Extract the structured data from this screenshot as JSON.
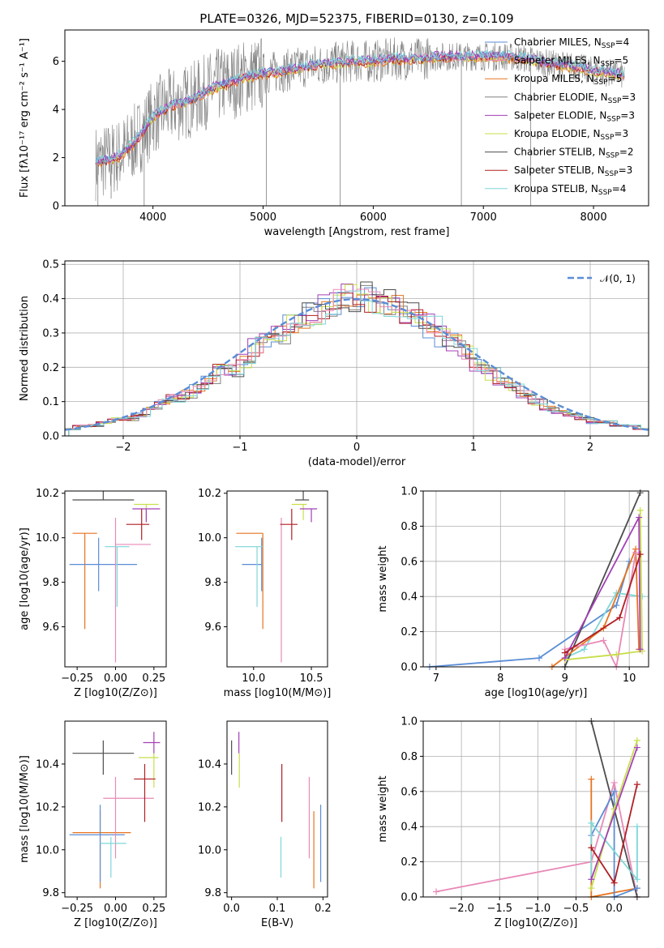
{
  "title": "PLATE=0326, MJD=52375, FIBERID=0130, z=0.109",
  "colors": {
    "blue": "#5a8dd6",
    "orange": "#e8731f",
    "gray": "#808080",
    "purple": "#a43fb8",
    "lime": "#c8de4a",
    "darkgray": "#4d4d4d",
    "red": "#b01f24",
    "cyan": "#7fd6d9",
    "pink": "#e889b8",
    "dashed": "#5a8dd6"
  },
  "spectrum": {
    "xlabel": "wavelength [Angstrom, rest frame]",
    "ylabel": "Flux [fλ10⁻¹⁷ erg cm⁻² s⁻¹ A⁻¹]",
    "xlim": [
      3200,
      8500
    ],
    "ylim": [
      0,
      7.3
    ],
    "xticks": [
      "4000",
      "5000",
      "6000",
      "7000",
      "8000"
    ],
    "yticks": [
      "0",
      "2",
      "4",
      "6"
    ],
    "legend": [
      {
        "label": "Chabrier MILES, N_SSP=4",
        "color": "blue"
      },
      {
        "label": "Salpeter MILES, N_SSP=5",
        "color": "pink"
      },
      {
        "label": "Kroupa MILES, N_SSP=5",
        "color": "orange"
      },
      {
        "label": "Chabrier ELODIE, N_SSP=3",
        "color": "gray"
      },
      {
        "label": "Salpeter ELODIE, N_SSP=3",
        "color": "purple"
      },
      {
        "label": "Kroupa ELODIE, N_SSP=3",
        "color": "lime"
      },
      {
        "label": "Chabrier STELIB, N_SSP=2",
        "color": "darkgray"
      },
      {
        "label": "Salpeter STELIB, N_SSP=3",
        "color": "red"
      },
      {
        "label": "Kroupa STELIB, N_SSP=4",
        "color": "cyan"
      }
    ]
  },
  "histogram": {
    "xlabel": "(data-model)/error",
    "ylabel": "Normed distribution",
    "xlim": [
      -2.5,
      2.5
    ],
    "ylim": [
      0,
      0.51
    ],
    "xticks": [
      "−2",
      "−1",
      "0",
      "1",
      "2"
    ],
    "yticks": [
      "0.0",
      "0.1",
      "0.2",
      "0.3",
      "0.4",
      "0.5"
    ],
    "legend": "𝒩(0, 1)"
  },
  "panels": {
    "age_vs_Z": {
      "xlabel": "Z [log10(Z/Z⊙)]",
      "ylabel": "age  [log10(age/yr)]",
      "xticks": [
        "−0.25",
        "0.00",
        "0.25"
      ],
      "yticks": [
        "9.6",
        "9.8",
        "10.0",
        "10.2"
      ]
    },
    "age_vs_mass": {
      "xlabel": "mass [log10(M/M⊙)]",
      "xticks": [
        "10.0",
        "10.5"
      ],
      "yticks": [
        "9.6",
        "9.8",
        "10.0",
        "10.2"
      ]
    },
    "mw_vs_age": {
      "xlabel": "age  [log10(age/yr)]",
      "ylabel": "mass weight",
      "xticks": [
        "7",
        "8",
        "9",
        "10"
      ],
      "yticks": [
        "0.0",
        "0.2",
        "0.4",
        "0.6",
        "0.8",
        "1.0"
      ]
    },
    "mass_vs_Z": {
      "xlabel": "Z [log10(Z/Z⊙)]",
      "ylabel": "mass [log10(M/M⊙)]",
      "xticks": [
        "−0.25",
        "0.00",
        "0.25"
      ],
      "yticks": [
        "9.8",
        "10.0",
        "10.2",
        "10.4"
      ]
    },
    "mass_vs_ebv": {
      "xlabel": "E(B-V)",
      "xticks": [
        "0.0",
        "0.1",
        "0.2"
      ],
      "yticks": [
        "9.8",
        "10.0",
        "10.2",
        "10.4"
      ]
    },
    "mw_vs_Z": {
      "xlabel": "Z [log10(Z/Z⊙)]",
      "ylabel": "mass weight",
      "xticks": [
        "−2.0",
        "−1.5",
        "−1.0",
        "−0.5",
        "0.0"
      ],
      "yticks": [
        "0.0",
        "0.2",
        "0.4",
        "0.6",
        "0.8",
        "1.0"
      ]
    }
  },
  "chart_data": [
    {
      "type": "line",
      "title": "PLATE=0326, MJD=52375, FIBERID=0130, z=0.109",
      "xlabel": "wavelength [Angstrom, rest frame]",
      "ylabel": "Flux [fλ10⁻¹⁷ erg cm⁻² s⁻¹ A⁻¹]",
      "xlim": [
        3200,
        8500
      ],
      "ylim": [
        0,
        7.3
      ],
      "x": [
        3480,
        3600,
        3700,
        3800,
        3900,
        4000,
        4100,
        4200,
        4300,
        4400,
        4500,
        4600,
        4700,
        4800,
        4900,
        5000,
        5200,
        5400,
        5600,
        5800,
        6000,
        6200,
        6400,
        6600,
        6800,
        7000,
        7200,
        7400,
        7600,
        7800,
        8000,
        8200,
        8280
      ],
      "series": [
        {
          "name": "Kroupa STELIB, N_SSP=4",
          "values": [
            1.8,
            1.9,
            2.1,
            2.5,
            3.0,
            3.7,
            4.0,
            4.2,
            4.3,
            4.5,
            4.8,
            5.0,
            5.1,
            5.3,
            5.4,
            5.5,
            5.6,
            5.8,
            5.9,
            6.0,
            6.0,
            6.1,
            6.1,
            6.2,
            6.2,
            6.2,
            6.2,
            6.1,
            5.9,
            5.8,
            5.6,
            5.5,
            5.4
          ]
        }
      ]
    },
    {
      "type": "bar",
      "xlabel": "(data-model)/error",
      "ylabel": "Normed distribution",
      "xlim": [
        -2.5,
        2.5
      ],
      "ylim": [
        0,
        0.51
      ],
      "bin_left_edges": [
        -2.5,
        -2.4,
        -2.3,
        -2.2,
        -2.1,
        -2.0,
        -1.9,
        -1.8,
        -1.7,
        -1.6,
        -1.5,
        -1.4,
        -1.3,
        -1.2,
        -1.1,
        -1.0,
        -0.9,
        -0.8,
        -0.7,
        -0.6,
        -0.5,
        -0.4,
        -0.3,
        -0.2,
        -0.1,
        0.0,
        0.1,
        0.2,
        0.3,
        0.4,
        0.5,
        0.6,
        0.7,
        0.8,
        0.9,
        1.0,
        1.1,
        1.2,
        1.3,
        1.4,
        1.5,
        1.6,
        1.7,
        1.8,
        1.9,
        2.0,
        2.1,
        2.2,
        2.3,
        2.4
      ],
      "values": [
        0.02,
        0.03,
        0.03,
        0.04,
        0.05,
        0.05,
        0.06,
        0.08,
        0.1,
        0.11,
        0.12,
        0.14,
        0.16,
        0.2,
        0.19,
        0.22,
        0.26,
        0.27,
        0.3,
        0.33,
        0.35,
        0.36,
        0.38,
        0.39,
        0.4,
        0.41,
        0.4,
        0.39,
        0.37,
        0.36,
        0.34,
        0.32,
        0.29,
        0.27,
        0.24,
        0.21,
        0.18,
        0.16,
        0.14,
        0.12,
        0.1,
        0.08,
        0.07,
        0.06,
        0.05,
        0.04,
        0.04,
        0.03,
        0.03,
        0.02
      ],
      "gaussian": {
        "name": "𝒩(0, 1)",
        "mu": 0,
        "sigma": 1
      }
    },
    {
      "type": "scatter",
      "xlabel": "Z [log10(Z/Z⊙)]",
      "ylabel": "age  [log10(age/yr)]",
      "xlim": [
        -0.33,
        0.33
      ],
      "ylim": [
        9.42,
        10.21
      ],
      "points": [
        {
          "color": "darkgray",
          "x": -0.08,
          "xerr": [
            0.2,
            0.2
          ],
          "y": 10.17,
          "yerr": [
            0,
            0
          ]
        },
        {
          "color": "orange",
          "x": -0.2,
          "xerr": [
            0.08,
            0.08
          ],
          "y": 10.02,
          "yerr": [
            0.43,
            0
          ]
        },
        {
          "color": "blue",
          "x": -0.11,
          "xerr": [
            0.19,
            0.25
          ],
          "y": 9.88,
          "yerr": [
            0.12,
            0.12
          ]
        },
        {
          "color": "pink",
          "x": 0.0,
          "xerr": [
            0,
            0.23
          ],
          "y": 9.97,
          "yerr": [
            0.53,
            0.12
          ]
        },
        {
          "color": "cyan",
          "x": 0.01,
          "xerr": [
            0.08,
            0.08
          ],
          "y": 9.96,
          "yerr": [
            0.27,
            0
          ]
        },
        {
          "color": "lime",
          "x": 0.2,
          "xerr": [
            0.08,
            0.08
          ],
          "y": 10.15,
          "yerr": [
            0.07,
            0
          ]
        },
        {
          "color": "purple",
          "x": 0.2,
          "xerr": [
            0.09,
            0.09
          ],
          "y": 10.13,
          "yerr": [
            0.06,
            0
          ]
        },
        {
          "color": "red",
          "x": 0.17,
          "xerr": [
            0.1,
            0.05
          ],
          "y": 10.06,
          "yerr": [
            0.07,
            0.07
          ]
        }
      ]
    },
    {
      "type": "scatter",
      "xlabel": "mass [log10(M/M⊙)]",
      "xlim": [
        9.77,
        10.64
      ],
      "ylim": [
        9.42,
        10.21
      ],
      "points": [
        {
          "color": "darkgray",
          "x": 10.43,
          "xerr": [
            0.07,
            0.05
          ],
          "y": 10.17,
          "yerr": [
            0,
            0
          ]
        },
        {
          "color": "orange",
          "x": 10.08,
          "xerr": [
            0.23,
            0
          ],
          "y": 10.02,
          "yerr": [
            0.43,
            0
          ]
        },
        {
          "color": "blue",
          "x": 10.07,
          "xerr": [
            0.17,
            0
          ],
          "y": 9.88,
          "yerr": [
            0.12,
            0.12
          ]
        },
        {
          "color": "pink",
          "x": 10.24,
          "xerr": [
            0,
            0
          ],
          "y": 9.97,
          "yerr": [
            0.53,
            0.12
          ]
        },
        {
          "color": "cyan",
          "x": 10.03,
          "xerr": [
            0.19,
            0.05
          ],
          "y": 9.96,
          "yerr": [
            0.27,
            0
          ]
        },
        {
          "color": "lime",
          "x": 10.43,
          "xerr": [
            0.1,
            0.03
          ],
          "y": 10.15,
          "yerr": [
            0.07,
            0
          ]
        },
        {
          "color": "purple",
          "x": 10.5,
          "xerr": [
            0.1,
            0.05
          ],
          "y": 10.13,
          "yerr": [
            0.06,
            0
          ]
        },
        {
          "color": "red",
          "x": 10.33,
          "xerr": [
            0.1,
            0.05
          ],
          "y": 10.06,
          "yerr": [
            0.07,
            0.07
          ]
        }
      ]
    },
    {
      "type": "line",
      "xlabel": "age  [log10(age/yr)]",
      "ylabel": "mass weight",
      "xlim": [
        6.8,
        10.3
      ],
      "ylim": [
        0,
        1
      ],
      "series": [
        {
          "color": "blue",
          "x": [
            6.9,
            8.6,
            9.8,
            10.0
          ],
          "y": [
            0.0,
            0.05,
            0.35,
            0.6
          ]
        },
        {
          "color": "cyan",
          "x": [
            9.0,
            9.3,
            9.8,
            10.2
          ],
          "y": [
            0.05,
            0.1,
            0.42,
            0.4
          ]
        },
        {
          "color": "darkgray",
          "x": [
            9.0,
            10.17
          ],
          "y": [
            0.0,
            0.99
          ]
        },
        {
          "color": "orange",
          "x": [
            8.8,
            9.6,
            10.1,
            10.15
          ],
          "y": [
            0.0,
            0.22,
            0.67,
            0.1
          ]
        },
        {
          "color": "pink",
          "x": [
            9.0,
            9.6,
            9.8,
            10.1
          ],
          "y": [
            0.1,
            0.15,
            0.0,
            0.65
          ]
        },
        {
          "color": "lime",
          "x": [
            9.0,
            9.8,
            10.2,
            10.17
          ],
          "y": [
            0.04,
            0.07,
            0.09,
            0.89
          ]
        },
        {
          "color": "purple",
          "x": [
            9.0,
            10.15,
            10.17
          ],
          "y": [
            0.05,
            0.85,
            0.1
          ]
        },
        {
          "color": "red",
          "x": [
            9.0,
            9.85,
            10.17
          ],
          "y": [
            0.08,
            0.28,
            0.64
          ]
        }
      ]
    },
    {
      "type": "scatter",
      "xlabel": "Z [log10(Z/Z⊙)]",
      "ylabel": "mass [log10(M/M⊙)]",
      "xlim": [
        -0.33,
        0.33
      ],
      "ylim": [
        9.78,
        10.6
      ],
      "points": [
        {
          "color": "darkgray",
          "x": -0.08,
          "xerr": [
            0.2,
            0.2
          ],
          "y": 10.45,
          "yerr": [
            0.1,
            0.06
          ]
        },
        {
          "color": "orange",
          "x": -0.1,
          "xerr": [
            0.18,
            0.2
          ],
          "y": 10.08,
          "yerr": [
            0.26,
            0.1
          ]
        },
        {
          "color": "blue",
          "x": -0.1,
          "xerr": [
            0.2,
            0.16
          ],
          "y": 10.07,
          "yerr": [
            0.22,
            0.14
          ]
        },
        {
          "color": "pink",
          "x": 0.0,
          "xerr": [
            0.08,
            0.25
          ],
          "y": 10.24,
          "yerr": [
            0.28,
            0.1
          ]
        },
        {
          "color": "cyan",
          "x": -0.03,
          "xerr": [
            0.07,
            0.1
          ],
          "y": 10.03,
          "yerr": [
            0.16,
            0.03
          ]
        },
        {
          "color": "lime",
          "x": 0.25,
          "xerr": [
            0.1,
            0.03
          ],
          "y": 10.43,
          "yerr": [
            0.14,
            0.02
          ]
        },
        {
          "color": "purple",
          "x": 0.25,
          "xerr": [
            0.07,
            0.04
          ],
          "y": 10.5,
          "yerr": [
            0.05,
            0.05
          ]
        },
        {
          "color": "red",
          "x": 0.19,
          "xerr": [
            0.07,
            0.07
          ],
          "y": 10.33,
          "yerr": [
            0.2,
            0.07
          ]
        }
      ]
    },
    {
      "type": "scatter",
      "xlabel": "E(B-V)",
      "xlim": [
        -0.01,
        0.21
      ],
      "ylim": [
        9.78,
        10.6
      ],
      "points": [
        {
          "color": "darkgray",
          "x": 0.0,
          "y": 10.45,
          "yerr": [
            0.1,
            0.06
          ]
        },
        {
          "color": "purple",
          "x": 0.016,
          "y": 10.5,
          "yerr": [
            0.05,
            0.05
          ]
        },
        {
          "color": "lime",
          "x": 0.017,
          "y": 10.43,
          "yerr": [
            0.14,
            0.02
          ]
        },
        {
          "color": "cyan",
          "x": 0.108,
          "y": 10.03,
          "yerr": [
            0.16,
            0.03
          ]
        },
        {
          "color": "red",
          "x": 0.11,
          "y": 10.33,
          "yerr": [
            0.2,
            0.07
          ]
        },
        {
          "color": "pink",
          "x": 0.17,
          "y": 10.24,
          "yerr": [
            0.28,
            0.1
          ]
        },
        {
          "color": "orange",
          "x": 0.18,
          "y": 10.08,
          "yerr": [
            0.26,
            0.1
          ]
        },
        {
          "color": "blue",
          "x": 0.195,
          "y": 10.07,
          "yerr": [
            0.22,
            0.14
          ]
        }
      ]
    },
    {
      "type": "line",
      "xlabel": "Z [log10(Z/Z⊙)]",
      "ylabel": "mass weight",
      "xlim": [
        -2.5,
        0.45
      ],
      "ylim": [
        0,
        1
      ],
      "series": [
        {
          "color": "pink",
          "x": [
            -2.33,
            -0.3,
            0.0,
            0.3
          ],
          "y": [
            0.03,
            0.2,
            0.65,
            0.0
          ]
        },
        {
          "color": "darkgray",
          "x": [
            -0.3,
            0.3
          ],
          "y": [
            1.0,
            0.0
          ]
        },
        {
          "color": "orange",
          "x": [
            -0.3,
            -0.3,
            0.3
          ],
          "y": [
            0.67,
            0.0,
            0.05
          ]
        },
        {
          "color": "blue",
          "x": [
            -0.3,
            0.0,
            0.0,
            0.3
          ],
          "y": [
            0.35,
            0.6,
            0.0,
            0.05
          ]
        },
        {
          "color": "cyan",
          "x": [
            -0.3,
            -0.3,
            0.3,
            0.3
          ],
          "y": [
            0.1,
            0.42,
            0.1,
            0.4
          ]
        },
        {
          "color": "lime",
          "x": [
            -0.3,
            0.0,
            0.3
          ],
          "y": [
            0.05,
            0.5,
            0.89
          ]
        },
        {
          "color": "purple",
          "x": [
            -0.3,
            0.3
          ],
          "y": [
            0.1,
            0.85
          ]
        },
        {
          "color": "red",
          "x": [
            -0.3,
            0.0,
            0.3
          ],
          "y": [
            0.28,
            0.08,
            0.64
          ]
        }
      ]
    }
  ]
}
